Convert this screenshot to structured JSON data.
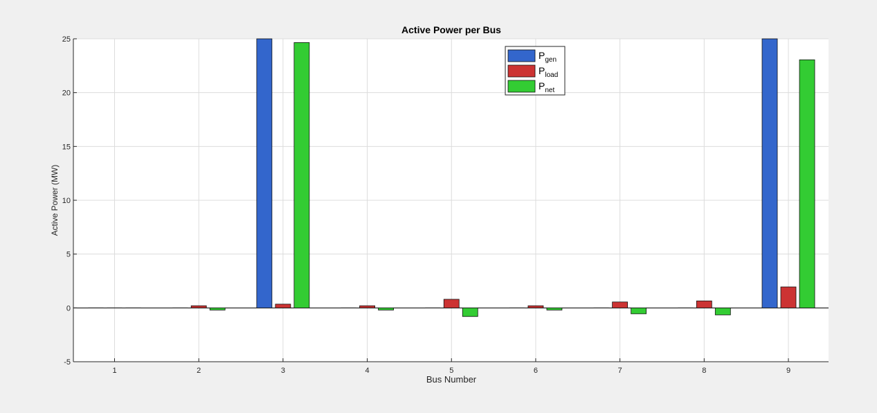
{
  "chart_data": {
    "type": "bar",
    "title": "Active Power per Bus",
    "xlabel": "Bus Number",
    "ylabel": "Active Power (MW)",
    "categories": [
      "1",
      "2",
      "3",
      "4",
      "5",
      "6",
      "7",
      "8",
      "9"
    ],
    "ylim": [
      -5,
      25
    ],
    "yticks": [
      -5,
      0,
      5,
      10,
      15,
      20,
      25
    ],
    "grid": true,
    "legend_position": "top-right",
    "series": [
      {
        "name": "P_gen",
        "legend_main": "P",
        "legend_sub": "gen",
        "color": "#3366cc",
        "values": [
          0,
          0,
          25,
          0,
          0,
          0,
          0,
          0,
          25
        ]
      },
      {
        "name": "P_load",
        "legend_main": "P",
        "legend_sub": "load",
        "color": "#cc3333",
        "values": [
          0,
          0.2,
          0.35,
          0.2,
          0.8,
          0.2,
          0.55,
          0.65,
          1.95
        ]
      },
      {
        "name": "P_net",
        "legend_main": "P",
        "legend_sub": "net",
        "color": "#33cc33",
        "values": [
          0,
          -0.2,
          24.65,
          -0.2,
          -0.8,
          -0.2,
          -0.55,
          -0.65,
          23.05
        ]
      }
    ]
  }
}
